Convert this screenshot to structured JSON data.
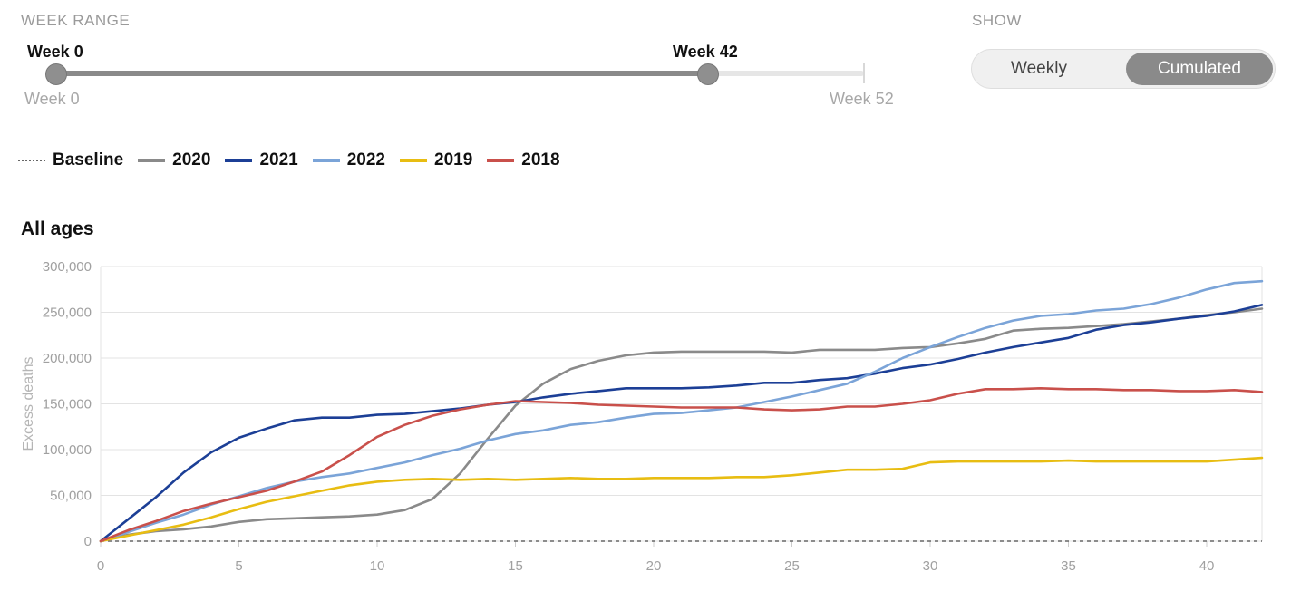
{
  "controls": {
    "week_range": {
      "label": "WEEK RANGE",
      "start_label": "Week 0",
      "end_label": "Week 42",
      "min_label": "Week 0",
      "max_label": "Week 52",
      "start": 0,
      "end": 42,
      "min": 0,
      "max": 52
    },
    "show": {
      "label": "SHOW",
      "options": [
        "Weekly",
        "Cumulated"
      ],
      "selected": "Cumulated"
    }
  },
  "colors": {
    "baseline": "#666666",
    "2020": "#8a8a8a",
    "2021": "#1c3f96",
    "2022": "#7ba4d8",
    "2019": "#e8bd12",
    "2018": "#c9504b",
    "grid": "#e3e3e3",
    "axis_text": "#a0a0a0"
  },
  "chart_data": {
    "type": "line",
    "title": "All ages",
    "ylabel": "Excess deaths",
    "xlabel": "",
    "xlim": [
      0,
      42
    ],
    "ylim": [
      0,
      300000
    ],
    "x_ticks": [
      0,
      5,
      10,
      15,
      20,
      25,
      30,
      35,
      40
    ],
    "y_ticks": [
      0,
      50000,
      100000,
      150000,
      200000,
      250000,
      300000
    ],
    "y_tick_labels": [
      "0",
      "50,000",
      "100,000",
      "150,000",
      "200,000",
      "250,000",
      "300,000"
    ],
    "grid": true,
    "legend_position": "top-left",
    "x": [
      0,
      1,
      2,
      3,
      4,
      5,
      6,
      7,
      8,
      9,
      10,
      11,
      12,
      13,
      14,
      15,
      16,
      17,
      18,
      19,
      20,
      21,
      22,
      23,
      24,
      25,
      26,
      27,
      28,
      29,
      30,
      31,
      32,
      33,
      34,
      35,
      36,
      37,
      38,
      39,
      40,
      41,
      42
    ],
    "baseline": {
      "name": "Baseline",
      "value": 0
    },
    "series": [
      {
        "name": "2020",
        "color_key": "2020",
        "values": [
          0,
          7000,
          11000,
          13000,
          16000,
          21000,
          24000,
          25000,
          26000,
          27000,
          29000,
          34000,
          46000,
          74000,
          112000,
          148000,
          172000,
          188000,
          197000,
          203000,
          206000,
          207000,
          207000,
          207000,
          207000,
          206000,
          209000,
          209000,
          209000,
          211000,
          212000,
          216000,
          221000,
          230000,
          232000,
          233000,
          235000,
          237000,
          240000,
          243000,
          247000,
          250000,
          254000
        ]
      },
      {
        "name": "2021",
        "color_key": "2021",
        "values": [
          0,
          24000,
          48000,
          75000,
          97000,
          113000,
          123000,
          132000,
          135000,
          135000,
          138000,
          139000,
          142000,
          145000,
          149000,
          152000,
          157000,
          161000,
          164000,
          167000,
          167000,
          167000,
          168000,
          170000,
          173000,
          173000,
          176000,
          178000,
          183000,
          189000,
          193000,
          199000,
          206000,
          212000,
          217000,
          222000,
          231000,
          236000,
          239000,
          243000,
          246000,
          251000,
          258000
        ]
      },
      {
        "name": "2022",
        "color_key": "2022",
        "values": [
          0,
          10000,
          20000,
          29000,
          40000,
          49000,
          58000,
          65000,
          70000,
          74000,
          80000,
          86000,
          94000,
          101000,
          110000,
          117000,
          121000,
          127000,
          130000,
          135000,
          139000,
          140000,
          143000,
          146000,
          152000,
          158000,
          165000,
          172000,
          185000,
          200000,
          212000,
          223000,
          233000,
          241000,
          246000,
          248000,
          252000,
          254000,
          259000,
          266000,
          275000,
          282000,
          284000
        ]
      },
      {
        "name": "2019",
        "color_key": "2019",
        "values": [
          0,
          6000,
          12000,
          18000,
          26000,
          35000,
          43000,
          49000,
          55000,
          61000,
          65000,
          67000,
          68000,
          67000,
          68000,
          67000,
          68000,
          69000,
          68000,
          68000,
          69000,
          69000,
          69000,
          70000,
          70000,
          72000,
          75000,
          78000,
          78000,
          79000,
          86000,
          87000,
          87000,
          87000,
          87000,
          88000,
          87000,
          87000,
          87000,
          87000,
          87000,
          89000,
          91000
        ]
      },
      {
        "name": "2018",
        "color_key": "2018",
        "values": [
          0,
          12000,
          22000,
          33000,
          41000,
          48000,
          55000,
          65000,
          76000,
          94000,
          114000,
          127000,
          137000,
          144000,
          149000,
          153000,
          152000,
          151000,
          149000,
          148000,
          147000,
          146000,
          146000,
          146000,
          144000,
          143000,
          144000,
          147000,
          147000,
          150000,
          154000,
          161000,
          166000,
          166000,
          167000,
          166000,
          166000,
          165000,
          165000,
          164000,
          164000,
          165000,
          163000
        ]
      }
    ]
  }
}
